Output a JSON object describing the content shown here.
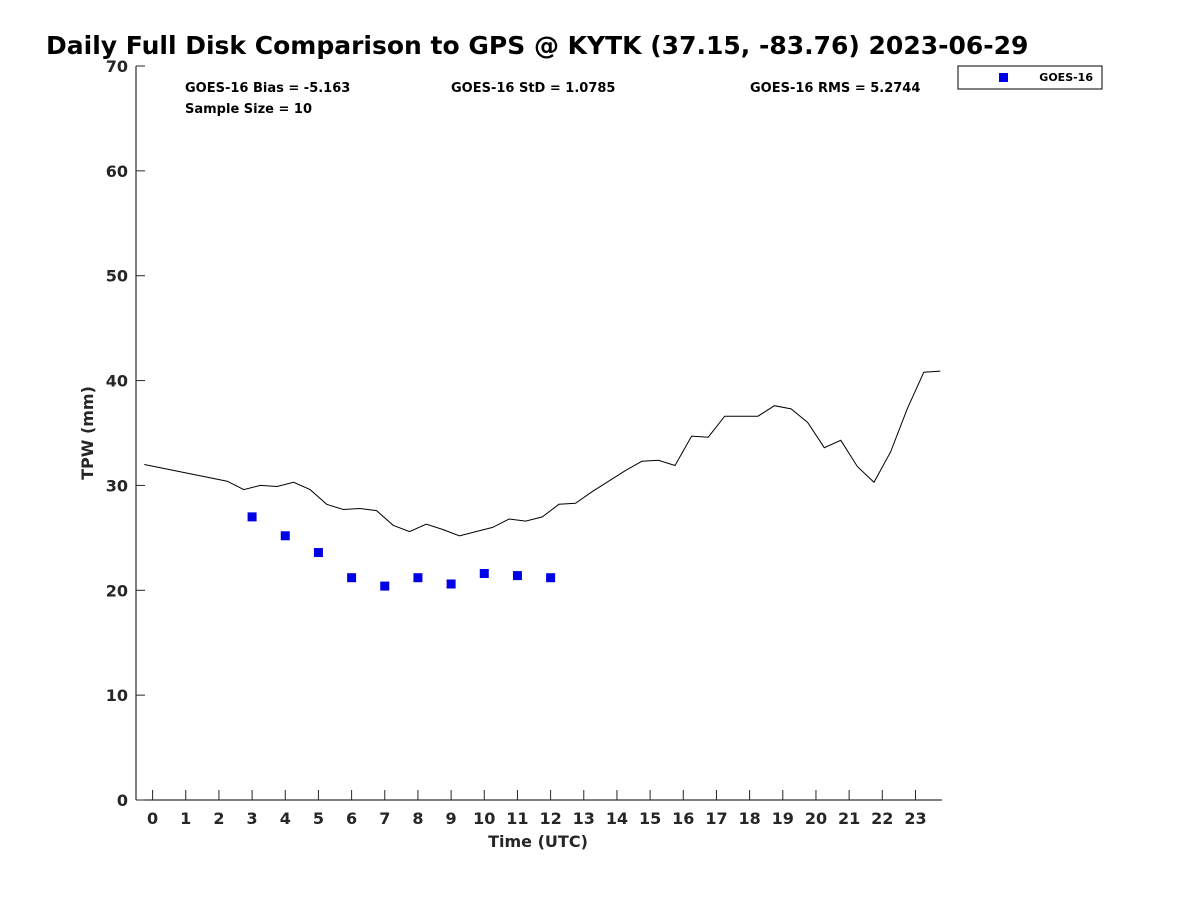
{
  "chart_data": {
    "type": "scatter",
    "title": "Daily Full Disk Comparison to GPS @ KYTK (37.15, -83.76) 2023-06-29",
    "xlabel": "Time (UTC)",
    "ylabel": "TPW (mm)",
    "xlim": [
      -0.5,
      23.8
    ],
    "ylim": [
      0,
      70
    ],
    "x_ticks": [
      "0",
      "1",
      "2",
      "3",
      "4",
      "5",
      "6",
      "7",
      "8",
      "9",
      "10",
      "11",
      "12",
      "13",
      "14",
      "15",
      "16",
      "17",
      "18",
      "19",
      "20",
      "21",
      "22",
      "23"
    ],
    "y_ticks": [
      "0",
      "10",
      "20",
      "30",
      "40",
      "50",
      "60",
      "70"
    ],
    "grid": false,
    "legend_position": "top-right, outside plot area",
    "stats": {
      "bias": "GOES-16 Bias = -5.163",
      "std": "GOES-16 StD = 1.0785",
      "rms": "GOES-16 RMS = 5.2744",
      "sample_size": "Sample Size = 10"
    },
    "series": [
      {
        "name": "GOES-16",
        "kind": "markers",
        "marker": "square",
        "color": "#0000e6",
        "x": [
          3,
          4,
          5,
          6,
          7,
          8,
          9,
          10,
          11,
          12
        ],
        "y": [
          27.0,
          25.2,
          23.6,
          21.2,
          20.4,
          21.2,
          20.6,
          21.6,
          21.4,
          21.2
        ]
      },
      {
        "kind": "line",
        "color": "#000000",
        "x": [
          -0.25,
          2.25,
          2.75,
          3.25,
          3.75,
          4.25,
          4.75,
          5.25,
          5.75,
          6.25,
          6.75,
          7.25,
          7.75,
          8.25,
          8.75,
          9.25,
          9.75,
          10.25,
          10.75,
          11.25,
          11.75,
          12.25,
          12.75,
          13.25,
          13.75,
          14.25,
          14.75,
          15.25,
          15.75,
          16.25,
          16.75,
          17.25,
          17.75,
          18.25,
          18.75,
          19.25,
          19.75,
          20.25,
          20.75,
          21.25,
          21.75,
          22.25,
          22.75,
          23.25,
          23.75
        ],
        "y": [
          32.0,
          30.4,
          29.6,
          30.0,
          29.9,
          30.3,
          29.6,
          28.2,
          27.7,
          27.8,
          27.6,
          26.2,
          25.6,
          26.3,
          25.8,
          25.2,
          25.6,
          26.0,
          26.8,
          26.6,
          27.0,
          28.2,
          28.3,
          29.4,
          30.4,
          31.4,
          32.3,
          32.4,
          31.9,
          34.7,
          34.6,
          36.6,
          36.6,
          36.6,
          37.6,
          37.3,
          36.0,
          33.6,
          34.3,
          31.8,
          30.3,
          33.2,
          37.3,
          40.8,
          40.9
        ]
      }
    ]
  }
}
